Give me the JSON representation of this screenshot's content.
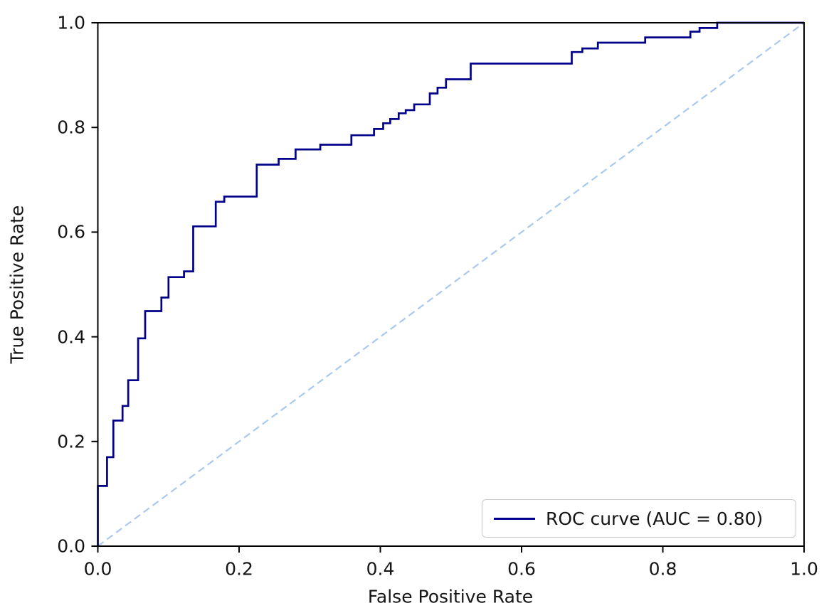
{
  "chart_data": {
    "type": "line",
    "subtype": "roc-curve-step",
    "title": "",
    "xlabel": "False Positive Rate",
    "ylabel": "True Positive Rate",
    "xlim": [
      0,
      1
    ],
    "ylim": [
      0,
      1
    ],
    "x_ticks": [
      0.0,
      0.2,
      0.4,
      0.6,
      0.8,
      1.0
    ],
    "y_ticks": [
      0.0,
      0.2,
      0.4,
      0.6,
      0.8,
      1.0
    ],
    "x_tick_labels": [
      "0.0",
      "0.2",
      "0.4",
      "0.6",
      "0.8",
      "1.0"
    ],
    "y_tick_labels": [
      "0.0",
      "0.2",
      "0.4",
      "0.6",
      "0.8",
      "1.0"
    ],
    "grid": false,
    "auc": 0.8,
    "legend": {
      "position": "lower-right",
      "entries": [
        {
          "label": "ROC curve (AUC = 0.80)",
          "color": "#00008b",
          "linestyle": "solid"
        }
      ]
    },
    "colors": {
      "axis": "#000000",
      "text": "#151515",
      "background": "#ffffff",
      "legend_border": "#c9c9c9"
    },
    "series": [
      {
        "id": "roc-curve",
        "name": "ROC curve (AUC = 0.80)",
        "color": "#00008b",
        "linestyle": "solid",
        "linewidth": 2.7,
        "points": [
          [
            0.0,
            0.0
          ],
          [
            0.0,
            0.115
          ],
          [
            0.013,
            0.115
          ],
          [
            0.013,
            0.17
          ],
          [
            0.022,
            0.17
          ],
          [
            0.022,
            0.24
          ],
          [
            0.035,
            0.24
          ],
          [
            0.035,
            0.268
          ],
          [
            0.043,
            0.268
          ],
          [
            0.043,
            0.317
          ],
          [
            0.057,
            0.317
          ],
          [
            0.057,
            0.397
          ],
          [
            0.067,
            0.397
          ],
          [
            0.067,
            0.449
          ],
          [
            0.09,
            0.449
          ],
          [
            0.09,
            0.475
          ],
          [
            0.1,
            0.475
          ],
          [
            0.1,
            0.514
          ],
          [
            0.122,
            0.514
          ],
          [
            0.122,
            0.525
          ],
          [
            0.135,
            0.525
          ],
          [
            0.135,
            0.611
          ],
          [
            0.167,
            0.611
          ],
          [
            0.167,
            0.658
          ],
          [
            0.179,
            0.658
          ],
          [
            0.179,
            0.668
          ],
          [
            0.225,
            0.668
          ],
          [
            0.225,
            0.729
          ],
          [
            0.256,
            0.729
          ],
          [
            0.256,
            0.74
          ],
          [
            0.28,
            0.74
          ],
          [
            0.28,
            0.758
          ],
          [
            0.315,
            0.758
          ],
          [
            0.315,
            0.767
          ],
          [
            0.359,
            0.767
          ],
          [
            0.359,
            0.785
          ],
          [
            0.391,
            0.785
          ],
          [
            0.391,
            0.797
          ],
          [
            0.404,
            0.797
          ],
          [
            0.404,
            0.808
          ],
          [
            0.414,
            0.808
          ],
          [
            0.414,
            0.816
          ],
          [
            0.426,
            0.816
          ],
          [
            0.426,
            0.827
          ],
          [
            0.436,
            0.827
          ],
          [
            0.436,
            0.833
          ],
          [
            0.448,
            0.833
          ],
          [
            0.448,
            0.844
          ],
          [
            0.47,
            0.844
          ],
          [
            0.47,
            0.865
          ],
          [
            0.481,
            0.865
          ],
          [
            0.481,
            0.876
          ],
          [
            0.493,
            0.876
          ],
          [
            0.493,
            0.892
          ],
          [
            0.528,
            0.892
          ],
          [
            0.528,
            0.922
          ],
          [
            0.671,
            0.922
          ],
          [
            0.671,
            0.944
          ],
          [
            0.686,
            0.944
          ],
          [
            0.686,
            0.951
          ],
          [
            0.708,
            0.951
          ],
          [
            0.708,
            0.962
          ],
          [
            0.775,
            0.962
          ],
          [
            0.775,
            0.972
          ],
          [
            0.839,
            0.972
          ],
          [
            0.839,
            0.983
          ],
          [
            0.852,
            0.983
          ],
          [
            0.852,
            0.99
          ],
          [
            0.877,
            0.99
          ],
          [
            0.877,
            1.0
          ],
          [
            1.0,
            1.0
          ]
        ]
      },
      {
        "id": "chance-diagonal",
        "name": "chance diagonal",
        "color": "#a9c9ee",
        "linestyle": "dashed",
        "linewidth": 2.2,
        "points": [
          [
            0.0,
            0.0
          ],
          [
            1.0,
            1.0
          ]
        ]
      }
    ]
  }
}
